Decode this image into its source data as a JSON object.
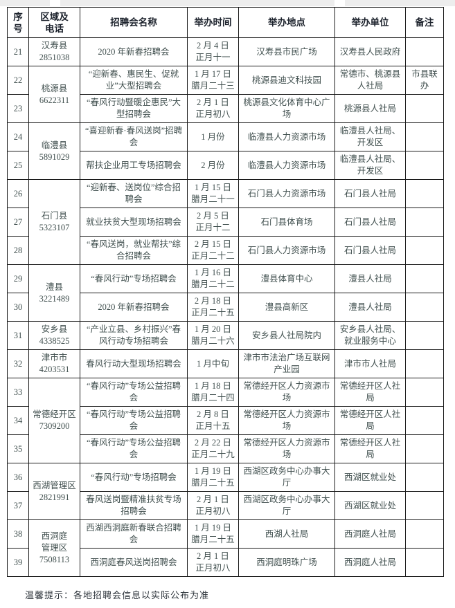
{
  "page": {
    "background": "#ffffff",
    "top_strip_color": "#ededed",
    "border_color": "#1a1a1a",
    "header_text_color": "#1c222c",
    "body_text_color": "#41504f"
  },
  "table": {
    "headers": [
      "序号",
      "区域及\n电话",
      "招聘会名称",
      "举办时间",
      "举办地点",
      "举办单位",
      "备注"
    ],
    "rows": [
      {
        "no": "21",
        "region": {
          "text": "汉寿县\n2851038",
          "rowspan": 1
        },
        "name": "2020 年新春招聘会",
        "time": "2 月 4 日\n正月十一",
        "place": "汉寿县市民广场",
        "organizer": "汉寿县人民政府",
        "note": ""
      },
      {
        "no": "22",
        "region": {
          "text": "桃源县\n6622311",
          "rowspan": 2
        },
        "name": "“迎新春、惠民生、促就业”大型招聘会",
        "time": "1 月 17 日\n腊月二十三",
        "place": "桃源县迪文科技园",
        "organizer": "常德市、桃源县人社局",
        "note": "市县联办"
      },
      {
        "no": "23",
        "name": "“春风行动暨暖企惠民”大型招聘会",
        "time": "2 月 1 日\n正月初八",
        "place": "桃源县文化体育中心广场",
        "organizer": "桃源县人社局",
        "note": ""
      },
      {
        "no": "24",
        "region": {
          "text": "临澧县\n5891029",
          "rowspan": 2
        },
        "name": "“喜迎新春·春风送岗”招聘会",
        "time": "1 月份",
        "place": "临澧县人力资源市场",
        "organizer": "临澧县人社局、开发区",
        "note": ""
      },
      {
        "no": "25",
        "name": "帮扶企业用工专场招聘会",
        "time": "2 月份",
        "place": "临澧县人力资源市场",
        "organizer": "临澧县人社局、开发区",
        "note": ""
      },
      {
        "no": "26",
        "region": {
          "text": "石门县\n5323107",
          "rowspan": 3
        },
        "name": "“迎新春、送岗位”综合招聘会",
        "time": "1 月 15 日\n腊月二十一",
        "place": "石门县人力资源市场",
        "organizer": "石门县人社局",
        "note": ""
      },
      {
        "no": "27",
        "name": "就业扶贫大型现场招聘会",
        "time": "2 月 5 日\n正月十二",
        "place": "石门县体育场",
        "organizer": "石门县人社局",
        "note": ""
      },
      {
        "no": "28",
        "name": "“春风送岗，就业帮扶”综合招聘会",
        "time": "2 月 15 日\n正月二十二",
        "place": "石门县人力资源市场",
        "organizer": "石门县人社局",
        "note": ""
      },
      {
        "no": "29",
        "region": {
          "text": "澧县\n3221489",
          "rowspan": 2
        },
        "name": "“春风行动”专场招聘会",
        "time": "1 月 16 日\n腊月二十二",
        "place": "澧县体育中心",
        "organizer": "澧县人社局",
        "note": ""
      },
      {
        "no": "30",
        "name": "2020 年新春招聘会",
        "time": "2 月 18 日\n正月二十五",
        "place": "澧县高新区",
        "organizer": "澧县人社局",
        "note": ""
      },
      {
        "no": "31",
        "region": {
          "text": "安乡县\n4338525",
          "rowspan": 1
        },
        "name": "“产业立县、乡村振兴”春风行动专场招聘会",
        "time": "1 月 20 日\n腊月二十六",
        "place": "安乡县人社局院内",
        "organizer": "安乡县人社局、就业服务中心",
        "note": ""
      },
      {
        "no": "32",
        "region": {
          "text": "津市市\n4203531",
          "rowspan": 1
        },
        "name": "春风行动大型现场招聘会",
        "time": "1 月中旬",
        "place": "津市市法治广场互联网产业园",
        "organizer": "津市市人社局",
        "note": ""
      },
      {
        "no": "33",
        "region": {
          "text": "常德经开区\n7309200",
          "rowspan": 3
        },
        "name": "“春风行动”专场公益招聘会",
        "time": "1 月 18 日\n腊月二十四",
        "place": "常德经开区人力资源市场",
        "organizer": "常德经开区人社局",
        "note": ""
      },
      {
        "no": "34",
        "name": "“春风行动”专场公益招聘会",
        "time": "2 月 8 日\n正月十五",
        "place": "常德经开区人力资源市场",
        "organizer": "常德经开区人社局",
        "note": ""
      },
      {
        "no": "35",
        "name": "“春风行动”专场公益招聘会",
        "time": "2 月 22 日\n正月二十九",
        "place": "常德经开区人力资源市场",
        "organizer": "常德经开区人社局",
        "note": ""
      },
      {
        "no": "36",
        "region": {
          "text": "西湖管理区\n2821991",
          "rowspan": 2
        },
        "name": "“春风行动”专场招聘会",
        "time": "1 月 19 日\n腊月二十五",
        "place": "西湖区政务中心办事大厅",
        "organizer": "西湖区就业处",
        "note": ""
      },
      {
        "no": "37",
        "name": "春风送岗暨精准扶贫专场招聘会",
        "time": "2 月 1 日\n正月初八",
        "place": "西湖区政务中心办事大厅",
        "organizer": "西湖区就业处",
        "note": ""
      },
      {
        "no": "38",
        "region": {
          "text": "西洞庭\n管理区\n7508113",
          "rowspan": 2
        },
        "name": "西湖西洞庭新春联合招聘会",
        "time": "1 月 19 日\n腊月二十五",
        "place": "西湖人社局",
        "organizer": "西洞庭人社局",
        "note": ""
      },
      {
        "no": "39",
        "name": "西洞庭春风送岗招聘会",
        "time": "2 月 1 日\n正月初八",
        "place": "西洞庭明珠广场",
        "organizer": "西洞庭人社局",
        "note": ""
      }
    ]
  },
  "footer_note": "温馨提示：各地招聘会信息以实际公布为准"
}
